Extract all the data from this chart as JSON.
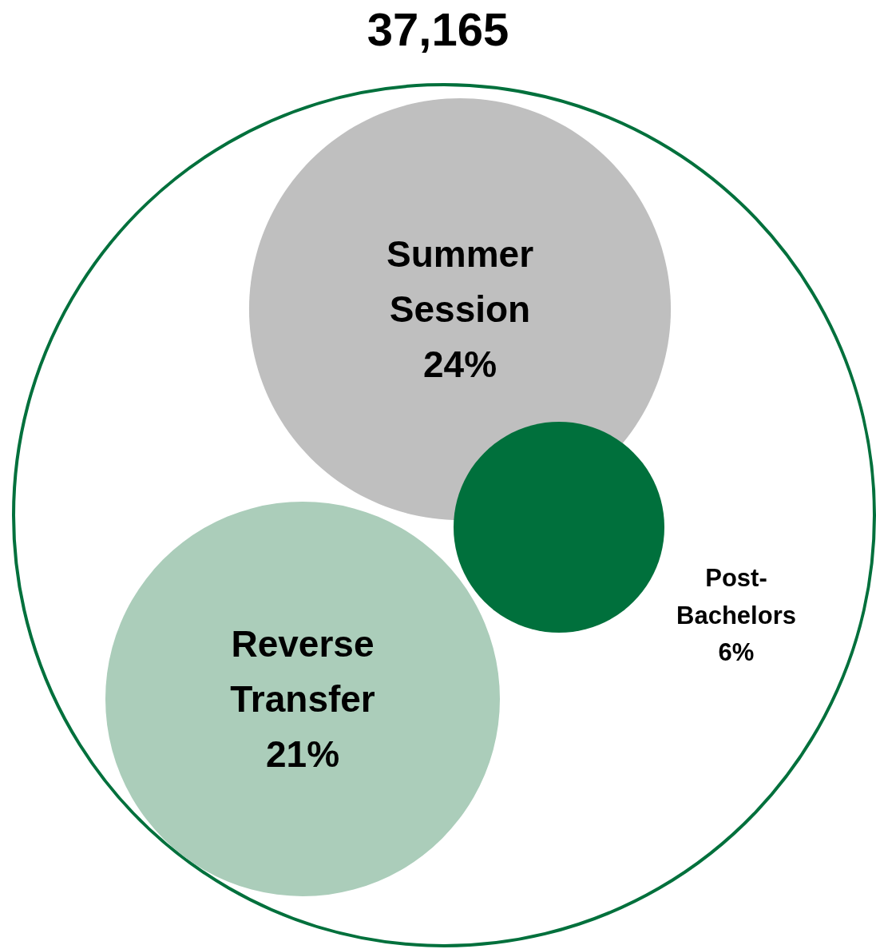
{
  "chart_data": {
    "type": "other",
    "title": "37,165",
    "categories": [
      "Summer Session",
      "Reverse Transfer",
      "Post-Bachelors"
    ],
    "values": [
      24,
      21,
      6
    ],
    "value_labels": [
      "24%",
      "21%",
      "6%"
    ],
    "colors": [
      "#bfbfbf",
      "#abcdba",
      "#00703c"
    ]
  }
}
